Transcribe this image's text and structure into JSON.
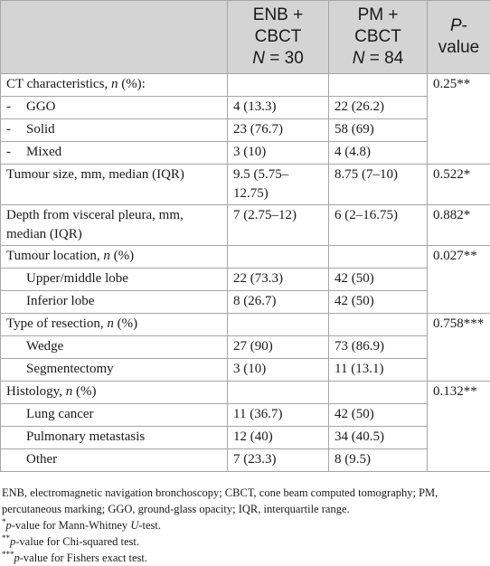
{
  "table": {
    "header": [
      [
        [
          {
            "text": "ENB +"
          }
        ],
        [
          {
            "text": "CBCT"
          }
        ],
        [
          {
            "text": "N",
            "italic": true
          },
          {
            "text": " = 30"
          }
        ]
      ],
      [
        [
          {
            "text": "PM +"
          }
        ],
        [
          {
            "text": "CBCT"
          }
        ],
        [
          {
            "text": "N",
            "italic": true
          },
          {
            "text": " = 84"
          }
        ]
      ],
      [
        [
          {
            "text": "P",
            "italic": true
          },
          {
            "text": "-"
          }
        ],
        [
          {
            "text": "value"
          }
        ]
      ]
    ],
    "groups": [
      {
        "label": [
          {
            "text": "CT characteristics, "
          },
          {
            "text": "n",
            "italic": true
          },
          {
            "text": " (%):"
          }
        ],
        "p": "0.25**",
        "items": [
          {
            "marker": "-",
            "label": "GGO",
            "enb": "4 (13.3)",
            "pm": "22 (26.2)"
          },
          {
            "marker": "-",
            "label": "Solid",
            "enb": "23 (76.7)",
            "pm": "58 (69)"
          },
          {
            "marker": "-",
            "label": "Mixed",
            "enb": "3 (10)",
            "pm": "4 (4.8)"
          }
        ]
      },
      {
        "label": [
          {
            "text": "Tumour size, mm, median (IQR)"
          }
        ],
        "enb": "9.5 (5.75–12.75)",
        "pm": "8.75 (7–10)",
        "p": "0.522*",
        "items": []
      },
      {
        "label": [
          {
            "text": "Depth from visceral pleura, mm, median (IQR)"
          }
        ],
        "enb": "7 (2.75–12)",
        "pm": "6 (2–16.75)",
        "p": "0.882*",
        "items": []
      },
      {
        "label": [
          {
            "text": "Tumour location, "
          },
          {
            "text": "n",
            "italic": true
          },
          {
            "text": " (%)"
          }
        ],
        "p": "0.027**",
        "items": [
          {
            "label": "Upper/middle lobe",
            "enb": "22 (73.3)",
            "pm": "42 (50)"
          },
          {
            "label": "Inferior lobe",
            "enb": "8 (26.7)",
            "pm": "42 (50)"
          }
        ]
      },
      {
        "label": [
          {
            "text": "Type of resection, "
          },
          {
            "text": "n",
            "italic": true
          },
          {
            "text": " (%)"
          }
        ],
        "p": "0.758***",
        "items": [
          {
            "label": "Wedge",
            "enb": "27 (90)",
            "pm": "73 (86.9)"
          },
          {
            "label": "Segmentectomy",
            "enb": "3 (10)",
            "pm": "11 (13.1)"
          }
        ]
      },
      {
        "label": [
          {
            "text": "Histology, "
          },
          {
            "text": "n",
            "italic": true
          },
          {
            "text": " (%)"
          }
        ],
        "p": "0.132**",
        "items": [
          {
            "label": "Lung cancer",
            "enb": "11 (36.7)",
            "pm": "42 (50)"
          },
          {
            "label": "Pulmonary metastasis",
            "enb": "12 (40)",
            "pm": "34 (40.5)"
          },
          {
            "label": "Other",
            "enb": "7 (23.3)",
            "pm": "8 (9.5)"
          }
        ]
      }
    ]
  },
  "footnotes": [
    [
      {
        "text": "ENB, electromagnetic navigation bronchoscopy; CBCT, cone beam computed tomography; PM, percutaneous marking; GGO, ground-glass opacity; IQR, interquartile range."
      }
    ],
    [
      {
        "text": "*",
        "sup": true
      },
      {
        "text": "p",
        "italic": true
      },
      {
        "text": "-value for Mann-Whitney "
      },
      {
        "text": "U",
        "italic": true
      },
      {
        "text": "-test."
      }
    ],
    [
      {
        "text": "**",
        "sup": true
      },
      {
        "text": "p",
        "italic": true
      },
      {
        "text": "-value for Chi-squared test."
      }
    ],
    [
      {
        "text": "***",
        "sup": true
      },
      {
        "text": "p",
        "italic": true
      },
      {
        "text": "-value for Fishers exact test."
      }
    ]
  ]
}
